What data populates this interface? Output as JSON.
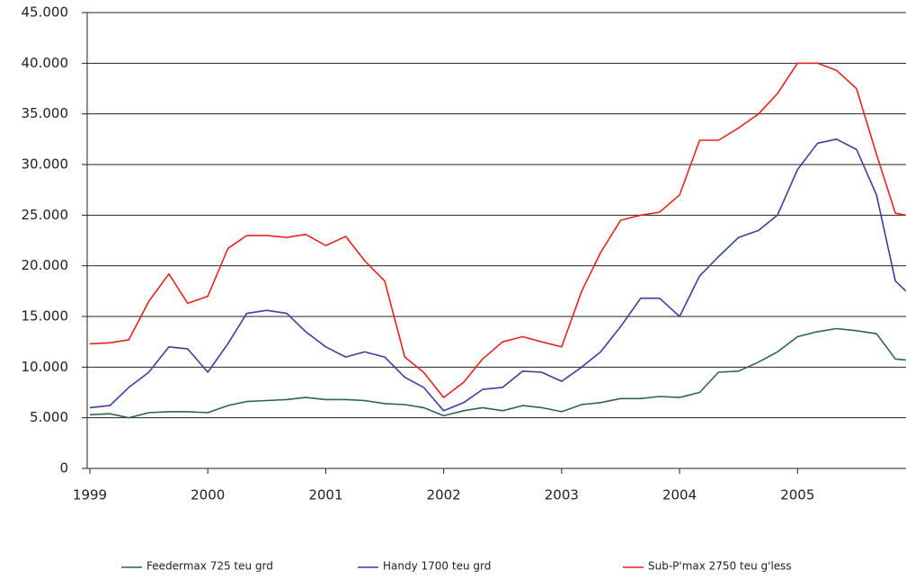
{
  "chart_data": {
    "type": "line",
    "x": [
      1999,
      1999.17,
      1999.33,
      1999.5,
      1999.67,
      1999.83,
      2000,
      2000.17,
      2000.33,
      2000.5,
      2000.67,
      2000.83,
      2001,
      2001.17,
      2001.33,
      2001.5,
      2001.67,
      2001.83,
      2002,
      2002.17,
      2002.33,
      2002.5,
      2002.67,
      2002.83,
      2003,
      2003.17,
      2003.33,
      2003.5,
      2003.67,
      2003.83,
      2004,
      2004.17,
      2004.33,
      2004.5,
      2004.67,
      2004.83,
      2005,
      2005.17,
      2005.33,
      2005.5,
      2005.67,
      2005.83,
      2005.92
    ],
    "series": [
      {
        "name": "Feedermax 725 teu grd",
        "color": "#2f6357",
        "values": [
          5300,
          5400,
          5000,
          5500,
          5600,
          5600,
          5500,
          6200,
          6600,
          6700,
          6800,
          7000,
          6800,
          6800,
          6700,
          6400,
          6300,
          6000,
          5200,
          5700,
          6000,
          5700,
          6200,
          6000,
          5600,
          6300,
          6500,
          6900,
          6900,
          7100,
          7000,
          7500,
          9500,
          9600,
          10500,
          11500,
          13000,
          13500,
          13800,
          13600,
          13300,
          10800,
          10700
        ]
      },
      {
        "name": "Handy 1700 teu grd",
        "color": "#3a3f9a",
        "values": [
          6000,
          6200,
          8000,
          9500,
          12000,
          11800,
          9500,
          12300,
          15300,
          15600,
          15300,
          13500,
          12000,
          11000,
          11500,
          11000,
          9000,
          8000,
          5700,
          6500,
          7800,
          8000,
          9600,
          9500,
          8600,
          10000,
          11500,
          14000,
          16800,
          16800,
          15000,
          19000,
          20900,
          22800,
          23500,
          25000,
          29500,
          32100,
          32500,
          31500,
          27000,
          18500,
          17500
        ]
      },
      {
        "name": "Sub-P'max 2750 teu g'less",
        "color": "#e8231c",
        "values": [
          12300,
          12400,
          12700,
          16500,
          19200,
          16300,
          17000,
          21700,
          23000,
          23000,
          22800,
          23100,
          22000,
          22900,
          20500,
          18500,
          11000,
          9500,
          7000,
          8500,
          10800,
          12500,
          13000,
          12500,
          12000,
          17500,
          21300,
          24500,
          25000,
          25300,
          27000,
          32400,
          32400,
          33600,
          35000,
          37000,
          40000,
          40000,
          39300,
          37500,
          31000,
          25200,
          25000
        ]
      }
    ],
    "xlim": [
      1999,
      2005.92
    ],
    "xticks": [
      1999,
      2000,
      2001,
      2002,
      2003,
      2004,
      2005
    ],
    "ylim": [
      0,
      45000
    ],
    "yticks": [
      0,
      {
        "value": 5000,
        "label": "5.000"
      },
      {
        "value": 10000,
        "label": "10.000"
      },
      {
        "value": 15000,
        "label": "15.000"
      },
      {
        "value": 20000,
        "label": "20.000"
      },
      {
        "value": 25000,
        "label": "25.000"
      },
      {
        "value": 30000,
        "label": "30.000"
      },
      {
        "value": 35000,
        "label": "35.000"
      },
      {
        "value": 40000,
        "label": "40.000"
      },
      {
        "value": 45000,
        "label": "45.000"
      }
    ],
    "grid": true,
    "legend": "bottom"
  }
}
